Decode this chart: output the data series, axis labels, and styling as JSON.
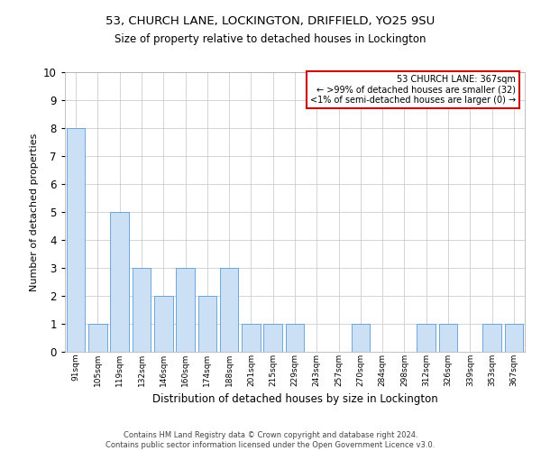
{
  "title1": "53, CHURCH LANE, LOCKINGTON, DRIFFIELD, YO25 9SU",
  "title2": "Size of property relative to detached houses in Lockington",
  "xlabel": "Distribution of detached houses by size in Lockington",
  "ylabel": "Number of detached properties",
  "categories": [
    "91sqm",
    "105sqm",
    "119sqm",
    "132sqm",
    "146sqm",
    "160sqm",
    "174sqm",
    "188sqm",
    "201sqm",
    "215sqm",
    "229sqm",
    "243sqm",
    "257sqm",
    "270sqm",
    "284sqm",
    "298sqm",
    "312sqm",
    "326sqm",
    "339sqm",
    "353sqm",
    "367sqm"
  ],
  "values": [
    8,
    1,
    5,
    3,
    2,
    3,
    2,
    3,
    1,
    1,
    1,
    0,
    0,
    1,
    0,
    0,
    1,
    1,
    0,
    1,
    1
  ],
  "bar_color": "#cce0f5",
  "bar_edge_color": "#5b9bd5",
  "annotation_box_text": "53 CHURCH LANE: 367sqm\n← >99% of detached houses are smaller (32)\n<1% of semi-detached houses are larger (0) →",
  "annotation_box_color": "#cc0000",
  "footer1": "Contains HM Land Registry data © Crown copyright and database right 2024.",
  "footer2": "Contains public sector information licensed under the Open Government Licence v3.0.",
  "ylim": [
    0,
    10
  ],
  "yticks": [
    0,
    1,
    2,
    3,
    4,
    5,
    6,
    7,
    8,
    9,
    10
  ],
  "grid_color": "#cccccc",
  "background_color": "#ffffff"
}
